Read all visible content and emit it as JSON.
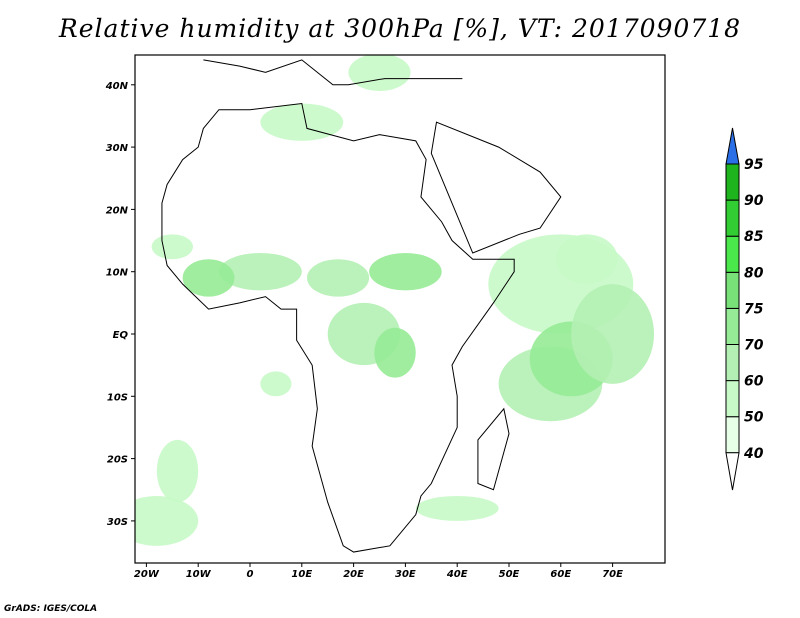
{
  "title": "Relative humidity at 300hPa [%], VT: 2017090718",
  "credit": "GrADS: IGES/COLA",
  "lon_labels": [
    "20W",
    "10W",
    "0",
    "10E",
    "20E",
    "30E",
    "40E",
    "50E",
    "60E",
    "70E"
  ],
  "lat_labels": [
    "40N",
    "30N",
    "20N",
    "10N",
    "EQ",
    "10S",
    "20S",
    "30S"
  ],
  "colorbar": {
    "levels": [
      "40",
      "50",
      "60",
      "70",
      "75",
      "80",
      "85",
      "90",
      "95"
    ],
    "colors": [
      "#e6ffe6",
      "#c8fac8",
      "#b4f0b4",
      "#96eb96",
      "#78e178",
      "#4ae84a",
      "#32cd32",
      "#1eb41e"
    ],
    "over_color": "#2b6fe6",
    "under_color": "#ffffff"
  }
}
